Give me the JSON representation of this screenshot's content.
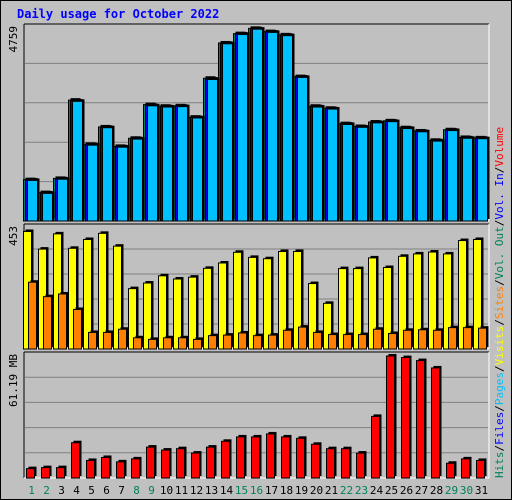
{
  "chart_data": {
    "type": "bar",
    "title": "Daily usage for October 2022",
    "categories": [
      "1",
      "2",
      "3",
      "4",
      "5",
      "6",
      "7",
      "8",
      "9",
      "10",
      "11",
      "12",
      "13",
      "14",
      "15",
      "16",
      "17",
      "18",
      "19",
      "20",
      "21",
      "22",
      "23",
      "24",
      "25",
      "26",
      "27",
      "28",
      "29",
      "30",
      "31"
    ],
    "weekend_days": [
      "1",
      "2",
      "8",
      "9",
      "15",
      "16",
      "22",
      "23",
      "29",
      "30"
    ],
    "panels": [
      {
        "name": "hits-files-pages",
        "max_label": "4759",
        "ylim": [
          0,
          4759
        ],
        "series": [
          {
            "name": "Hits",
            "color": "#00805c",
            "values": [
              1020,
              700,
              1050,
              2980,
              1890,
              2320,
              1840,
              2040,
              2870,
              2830,
              2840,
              2560,
              3520,
              4390,
              4620,
              4750,
              4670,
              4590,
              3560,
              2830,
              2780,
              2400,
              2330,
              2440,
              2470,
              2300,
              2220,
              1990,
              2250,
              2060,
              2050
            ]
          },
          {
            "name": "Files",
            "color": "#0000ff",
            "values": [
              1010,
              690,
              1040,
              2960,
              1880,
              2310,
              1830,
              2030,
              2850,
              2820,
              2830,
              2550,
              3500,
              4380,
              4610,
              4740,
              4660,
              4580,
              3550,
              2820,
              2770,
              2390,
              2320,
              2430,
              2460,
              2290,
              2210,
              1980,
              2240,
              2050,
              2040
            ]
          },
          {
            "name": "Pages",
            "color": "#00c0ff",
            "values": [
              1000,
              680,
              1030,
              2950,
              1870,
              2300,
              1820,
              2020,
              2840,
              2810,
              2820,
              2540,
              3490,
              4370,
              4600,
              4730,
              4650,
              4570,
              3540,
              2810,
              2760,
              2380,
              2310,
              2420,
              2450,
              2280,
              2200,
              1970,
              2230,
              2040,
              2030
            ]
          }
        ]
      },
      {
        "name": "visits-sites",
        "max_label": "453",
        "ylim": [
          0,
          453
        ],
        "series": [
          {
            "name": "Visits",
            "color": "#ffff00",
            "values": [
              440,
              374,
              431,
              377,
              410,
              433,
              385,
              226,
              247,
              274,
              262,
              269,
              302,
              322,
              362,
              343,
              338,
              365,
              365,
              245,
              171,
              301,
              301,
              341,
              305,
              347,
              356,
              363,
              356,
              406,
              410
            ]
          },
          {
            "name": "Sites",
            "color": "#ff8000",
            "values": [
              250,
              196,
              206,
              148,
              62,
              62,
              74,
              42,
              36,
              42,
              42,
              36,
              50,
              52,
              60,
              50,
              52,
              70,
              82,
              62,
              54,
              54,
              54,
              74,
              58,
              70,
              72,
              70,
              80,
              80,
              78
            ]
          }
        ]
      },
      {
        "name": "volume",
        "max_label": "61.19 MB",
        "ylim": [
          0,
          61.19
        ],
        "series": [
          {
            "name": "Volume",
            "color": "#ff0000",
            "values": [
              4.7,
              5.2,
              5.2,
              17.7,
              8.8,
              10.3,
              8.1,
              9.6,
              15.5,
              14.0,
              14.7,
              12.5,
              15.5,
              18.4,
              20.6,
              20.6,
              22.1,
              20.6,
              19.9,
              16.9,
              14.7,
              14.7,
              12.5,
              30.9,
              61.2,
              60.4,
              58.9,
              55.2,
              7.4,
              9.6,
              8.8
            ]
          }
        ]
      }
    ],
    "right_legend": [
      [
        {
          "text": "Hits",
          "color": "#00805c"
        },
        {
          "text": "/",
          "color": "#000000"
        },
        {
          "text": "Files",
          "color": "#0000ff"
        },
        {
          "text": "/",
          "color": "#000000"
        },
        {
          "text": "Pages",
          "color": "#00c0ff"
        },
        {
          "text": "/",
          "color": "#000000"
        },
        {
          "text": "Visits",
          "color": "#ffff00"
        },
        {
          "text": "/",
          "color": "#000000"
        },
        {
          "text": "Sites",
          "color": "#ff8000"
        },
        {
          "text": "/",
          "color": "#000000"
        },
        {
          "text": "Vol. Out",
          "color": "#00805c"
        },
        {
          "text": "/",
          "color": "#000000"
        },
        {
          "text": "Vol. In",
          "color": "#0000ff"
        },
        {
          "text": "/",
          "color": "#000000"
        },
        {
          "text": "Volume",
          "color": "#ff0000"
        }
      ]
    ],
    "colors": {
      "background": "#c0c0c0",
      "title": "#0000ff",
      "weekday_label": "#000000",
      "weekend_label": "#00805c",
      "gridline": "#808080"
    }
  }
}
